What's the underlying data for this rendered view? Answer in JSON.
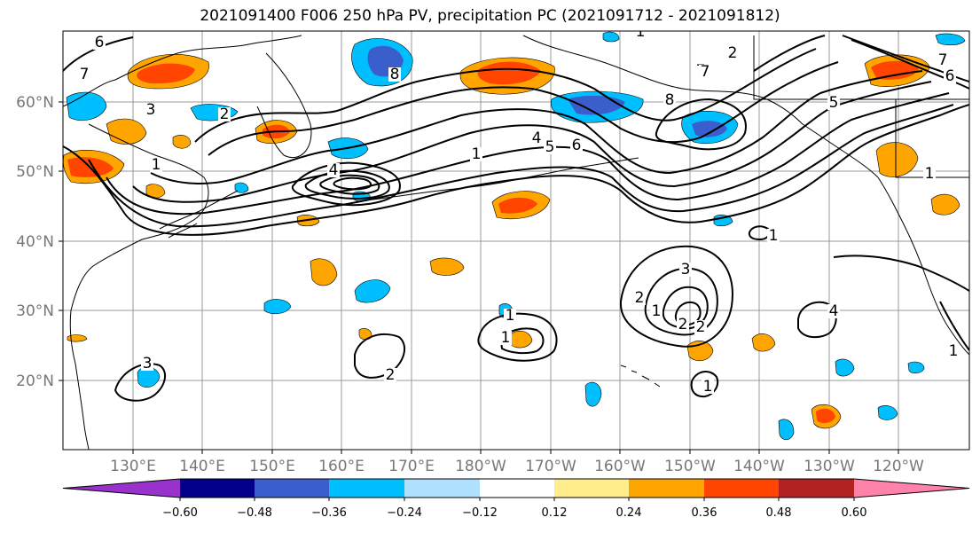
{
  "title": "2021091400 F006 250 hPa PV, precipitation PC (2021091712 - 2021091812)",
  "map": {
    "lat_labels": [
      "60°N",
      "50°N",
      "40°N",
      "30°N",
      "20°N"
    ],
    "lon_labels": [
      "130°E",
      "140°E",
      "150°E",
      "160°E",
      "170°E",
      "180°W",
      "170°W",
      "160°W",
      "150°W",
      "140°W",
      "130°W",
      "120°W"
    ],
    "contour_labels": [
      "6",
      "7",
      "1",
      "2",
      "3",
      "4",
      "5",
      "6",
      "7",
      "8",
      "1",
      "2",
      "3",
      "1",
      "2",
      "1",
      "1",
      "2",
      "3",
      "4",
      "1",
      "1",
      "1",
      "7",
      "6",
      "5",
      "1",
      "2",
      "1",
      "2",
      "7",
      "8",
      "4"
    ]
  },
  "colorbar": {
    "colors": [
      "#9932cc",
      "#00008b",
      "#3a5fcd",
      "#00bfff",
      "#b0e2ff",
      "#ffffff",
      "#ffec8b",
      "#ffa500",
      "#ff4500",
      "#b22222",
      "#ff82ab"
    ],
    "tick_labels": [
      "−0.60",
      "−0.48",
      "−0.36",
      "−0.24",
      "−0.12",
      "0.12",
      "0.24",
      "0.36",
      "0.48",
      "0.60"
    ]
  }
}
